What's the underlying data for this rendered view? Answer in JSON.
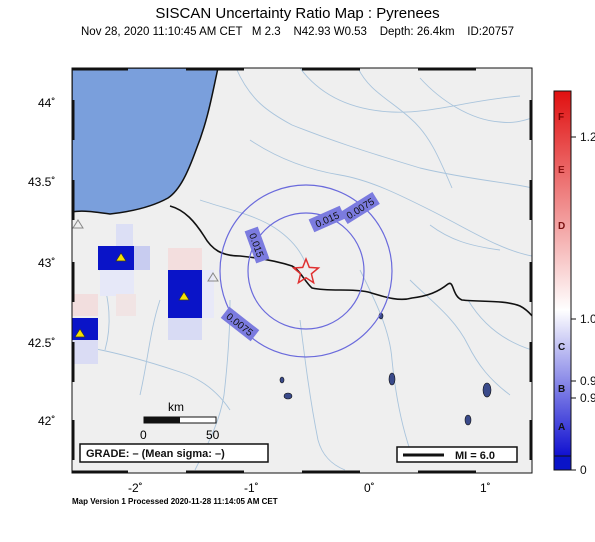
{
  "header": {
    "title": "SISCAN Uncertainty Ratio Map : Pyrenees",
    "subtitle": "Nov 28, 2020 11:10:45 AM CET   M 2.3    N42.93 W0.53    Depth: 26.4km    ID:20757"
  },
  "map": {
    "lat_labels": [
      "44˚",
      "43.5˚",
      "43˚",
      "42.5˚",
      "42˚"
    ],
    "lon_labels": [
      "-2˚",
      "-1˚",
      "0˚",
      "1˚"
    ],
    "contour_labels": [
      "0.0075",
      "0.015",
      "0.015",
      "0.0075"
    ],
    "scalebar": {
      "unit": "km",
      "start": "0",
      "end": "50"
    },
    "grade_text": "GRADE: – (Mean sigma: –)",
    "mi_text": "MI = 6.0",
    "colors": {
      "sea": "#7a9fdc",
      "land": "#efefef",
      "cell_blue": "#0a14c8",
      "contour": "#6a6adc",
      "epicenter": "#e03030",
      "station": "#f5e000"
    },
    "icons": [
      "epicenter-star-icon",
      "station-triangle-icon",
      "inactive-station-triangle-icon"
    ]
  },
  "colorbar": {
    "letters": [
      "F",
      "E",
      "D",
      "C",
      "B",
      "A"
    ],
    "values": [
      "1.2",
      "1.0",
      "0.9",
      "0.9",
      "0"
    ],
    "gradient_top": "#e01010",
    "gradient_mid": "#ffffff",
    "gradient_bottom": "#1010d0"
  },
  "footer": {
    "text": "Map Version 1 Processed 2020-11-28 11:14:05 AM CET"
  }
}
